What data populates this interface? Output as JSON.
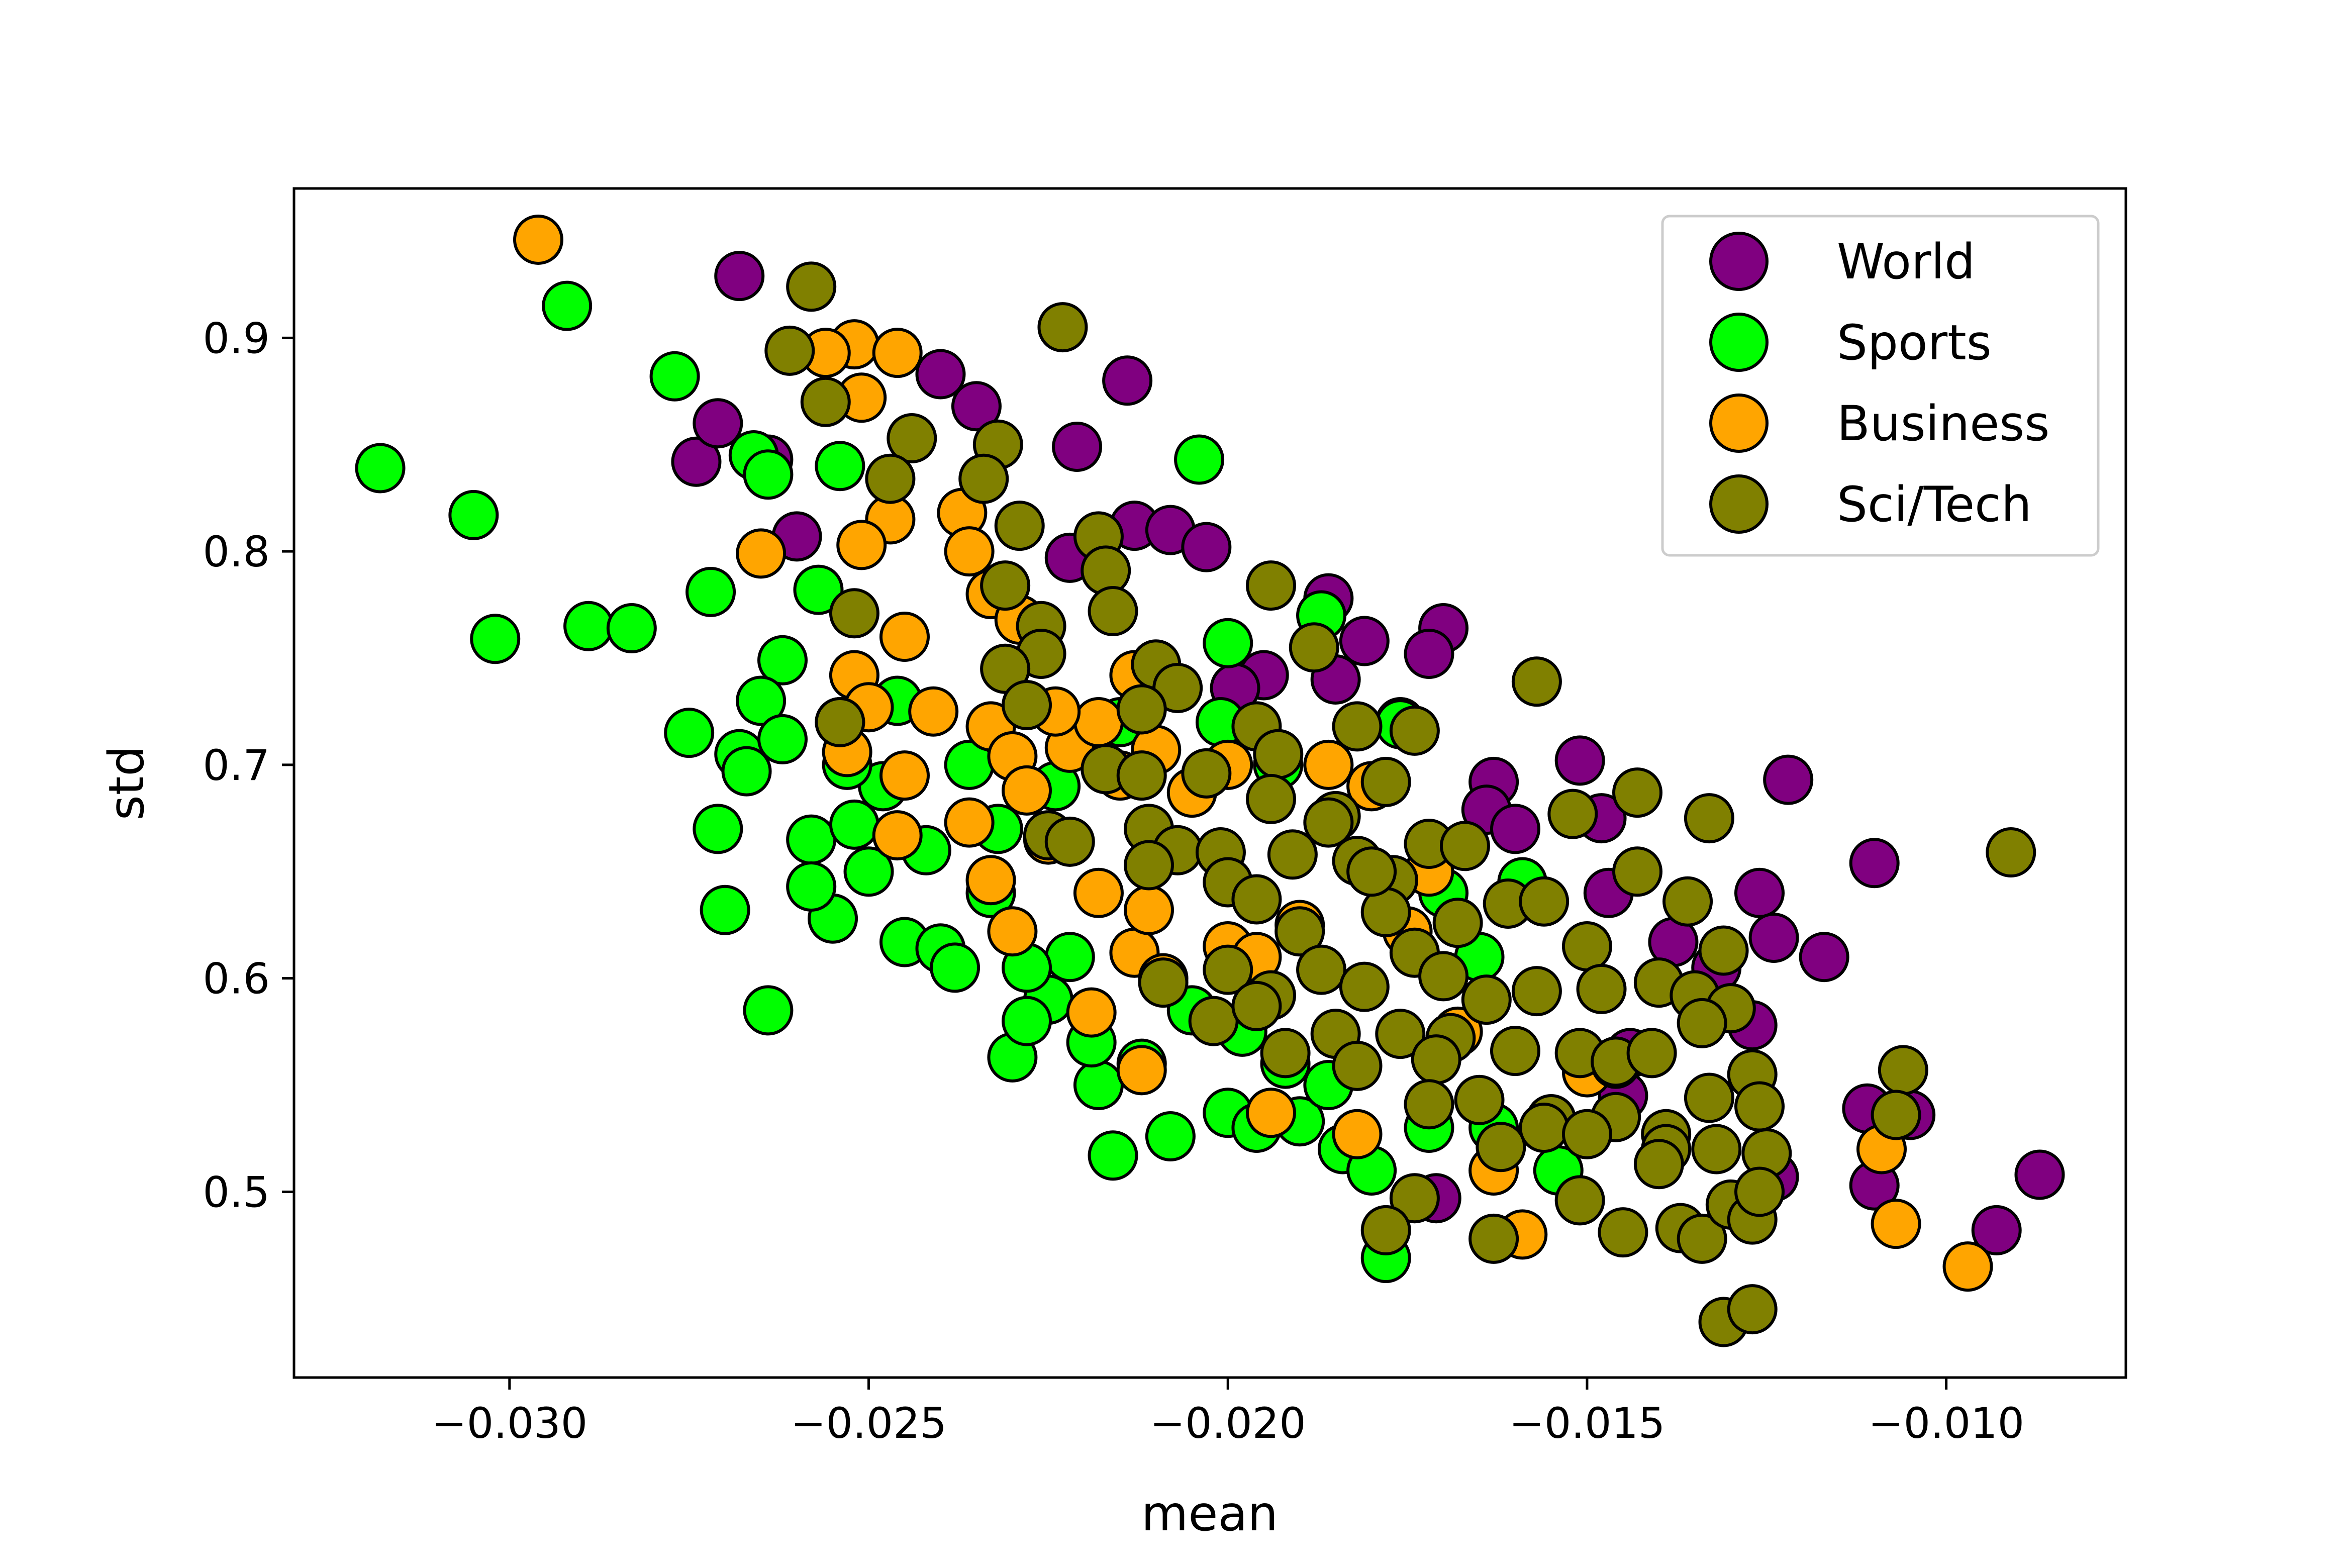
{
  "chart_data": {
    "type": "scatter",
    "title": "",
    "xlabel": "mean",
    "ylabel": "std",
    "xlim": [
      -0.033,
      -0.0075
    ],
    "ylim": [
      0.413,
      0.97
    ],
    "xticks": [
      -0.03,
      -0.025,
      -0.02,
      -0.015,
      -0.01
    ],
    "xtick_labels": [
      "−0.030",
      "−0.025",
      "−0.020",
      "−0.015",
      "−0.010"
    ],
    "yticks": [
      0.5,
      0.6,
      0.7,
      0.8,
      0.9
    ],
    "ytick_labels": [
      "0.5",
      "0.6",
      "0.7",
      "0.8",
      "0.9"
    ],
    "grid": false,
    "legend_position": "top-right",
    "series": [
      {
        "name": "World",
        "color": "#800080",
        "points": [
          [
            -0.0268,
            0.929
          ],
          [
            -0.0274,
            0.842
          ],
          [
            -0.0271,
            0.86
          ],
          [
            -0.0264,
            0.843
          ],
          [
            -0.026,
            0.807
          ],
          [
            -0.024,
            0.883
          ],
          [
            -0.0235,
            0.868
          ],
          [
            -0.0221,
            0.849
          ],
          [
            -0.0222,
            0.797
          ],
          [
            -0.0213,
            0.812
          ],
          [
            -0.0214,
            0.88
          ],
          [
            -0.0208,
            0.81
          ],
          [
            -0.0203,
            0.802
          ],
          [
            -0.0186,
            0.778
          ],
          [
            -0.0195,
            0.742
          ],
          [
            -0.0181,
            0.758
          ],
          [
            -0.017,
            0.764
          ],
          [
            -0.0172,
            0.752
          ],
          [
            -0.0163,
            0.692
          ],
          [
            -0.0164,
            0.679
          ],
          [
            -0.0151,
            0.702
          ],
          [
            -0.0148,
            0.675
          ],
          [
            -0.0147,
            0.64
          ],
          [
            -0.0138,
            0.617
          ],
          [
            -0.0132,
            0.605
          ],
          [
            -0.0126,
            0.64
          ],
          [
            -0.0122,
            0.693
          ],
          [
            -0.0124,
            0.619
          ],
          [
            -0.0117,
            0.61
          ],
          [
            -0.011,
            0.654
          ],
          [
            -0.0111,
            0.539
          ],
          [
            -0.0105,
            0.536
          ],
          [
            -0.011,
            0.503
          ],
          [
            -0.0093,
            0.482
          ],
          [
            -0.0087,
            0.508
          ],
          [
            -0.0127,
            0.578
          ],
          [
            -0.0124,
            0.507
          ],
          [
            -0.0144,
            0.565
          ],
          [
            -0.0145,
            0.545
          ],
          [
            -0.0171,
            0.497
          ],
          [
            -0.0185,
            0.74
          ],
          [
            -0.0199,
            0.736
          ],
          [
            -0.0176,
            0.72
          ],
          [
            -0.016,
            0.67
          ]
        ]
      },
      {
        "name": "Sports",
        "color": "#00ff00",
        "points": [
          [
            -0.0292,
            0.915
          ],
          [
            -0.0318,
            0.839
          ],
          [
            -0.0305,
            0.817
          ],
          [
            -0.0302,
            0.759
          ],
          [
            -0.0289,
            0.765
          ],
          [
            -0.0283,
            0.764
          ],
          [
            -0.0277,
            0.882
          ],
          [
            -0.0275,
            0.715
          ],
          [
            -0.0272,
            0.781
          ],
          [
            -0.0266,
            0.845
          ],
          [
            -0.0264,
            0.836
          ],
          [
            -0.0254,
            0.84
          ],
          [
            -0.0257,
            0.782
          ],
          [
            -0.0262,
            0.749
          ],
          [
            -0.0265,
            0.73
          ],
          [
            -0.0268,
            0.705
          ],
          [
            -0.0271,
            0.67
          ],
          [
            -0.027,
            0.632
          ],
          [
            -0.0264,
            0.585
          ],
          [
            -0.0258,
            0.665
          ],
          [
            -0.0255,
            0.628
          ],
          [
            -0.0245,
            0.617
          ],
          [
            -0.024,
            0.614
          ],
          [
            -0.0238,
            0.605
          ],
          [
            -0.0233,
            0.64
          ],
          [
            -0.023,
            0.563
          ],
          [
            -0.0225,
            0.59
          ],
          [
            -0.0222,
            0.61
          ],
          [
            -0.0218,
            0.55
          ],
          [
            -0.0216,
            0.517
          ],
          [
            -0.0208,
            0.526
          ],
          [
            -0.02,
            0.537
          ],
          [
            -0.0196,
            0.53
          ],
          [
            -0.019,
            0.533
          ],
          [
            -0.0184,
            0.52
          ],
          [
            -0.018,
            0.51
          ],
          [
            -0.0178,
            0.469
          ],
          [
            -0.0187,
            0.77
          ],
          [
            -0.0204,
            0.843
          ],
          [
            -0.02,
            0.757
          ],
          [
            -0.0176,
            0.719
          ],
          [
            -0.017,
            0.64
          ],
          [
            -0.0165,
            0.61
          ],
          [
            -0.0159,
            0.645
          ],
          [
            -0.0154,
            0.51
          ],
          [
            -0.0163,
            0.53
          ],
          [
            -0.0248,
            0.69
          ],
          [
            -0.0252,
            0.672
          ],
          [
            -0.0258,
            0.643
          ],
          [
            -0.0262,
            0.712
          ],
          [
            -0.0267,
            0.697
          ],
          [
            -0.025,
            0.65
          ],
          [
            -0.0242,
            0.66
          ],
          [
            -0.0236,
            0.7
          ],
          [
            -0.0228,
            0.605
          ],
          [
            -0.0219,
            0.57
          ],
          [
            -0.0212,
            0.56
          ],
          [
            -0.0205,
            0.585
          ],
          [
            -0.0198,
            0.575
          ],
          [
            -0.0192,
            0.56
          ],
          [
            -0.0186,
            0.55
          ],
          [
            -0.0228,
            0.58
          ],
          [
            -0.0172,
            0.53
          ],
          [
            -0.0246,
            0.73
          ],
          [
            -0.0253,
            0.7
          ],
          [
            -0.0232,
            0.67
          ],
          [
            -0.0224,
            0.69
          ],
          [
            -0.0215,
            0.72
          ],
          [
            -0.0201,
            0.72
          ],
          [
            -0.0193,
            0.7
          ]
        ]
      },
      {
        "name": "Business",
        "color": "#ffa500",
        "points": [
          [
            -0.0296,
            0.946
          ],
          [
            -0.0252,
            0.897
          ],
          [
            -0.0246,
            0.893
          ],
          [
            -0.0256,
            0.893
          ],
          [
            -0.0251,
            0.872
          ],
          [
            -0.0247,
            0.815
          ],
          [
            -0.0237,
            0.818
          ],
          [
            -0.0236,
            0.8
          ],
          [
            -0.0251,
            0.803
          ],
          [
            -0.0265,
            0.799
          ],
          [
            -0.0245,
            0.76
          ],
          [
            -0.0233,
            0.78
          ],
          [
            -0.0229,
            0.768
          ],
          [
            -0.0252,
            0.742
          ],
          [
            -0.025,
            0.727
          ],
          [
            -0.0254,
            0.72
          ],
          [
            -0.0253,
            0.706
          ],
          [
            -0.0245,
            0.695
          ],
          [
            -0.0246,
            0.667
          ],
          [
            -0.0241,
            0.725
          ],
          [
            -0.0233,
            0.718
          ],
          [
            -0.023,
            0.704
          ],
          [
            -0.0228,
            0.688
          ],
          [
            -0.0236,
            0.673
          ],
          [
            -0.0233,
            0.646
          ],
          [
            -0.023,
            0.622
          ],
          [
            -0.0225,
            0.665
          ],
          [
            -0.0222,
            0.708
          ],
          [
            -0.0218,
            0.72
          ],
          [
            -0.0213,
            0.742
          ],
          [
            -0.021,
            0.707
          ],
          [
            -0.0205,
            0.687
          ],
          [
            -0.0218,
            0.64
          ],
          [
            -0.0213,
            0.612
          ],
          [
            -0.0211,
            0.632
          ],
          [
            -0.0209,
            0.6
          ],
          [
            -0.0219,
            0.584
          ],
          [
            -0.0212,
            0.557
          ],
          [
            -0.02,
            0.615
          ],
          [
            -0.0196,
            0.61
          ],
          [
            -0.019,
            0.625
          ],
          [
            -0.0194,
            0.537
          ],
          [
            -0.0182,
            0.527
          ],
          [
            -0.0175,
            0.622
          ],
          [
            -0.0168,
            0.575
          ],
          [
            -0.0163,
            0.51
          ],
          [
            -0.0159,
            0.48
          ],
          [
            -0.015,
            0.556
          ],
          [
            -0.0146,
            0.56
          ],
          [
            -0.0109,
            0.52
          ],
          [
            -0.0107,
            0.485
          ],
          [
            -0.0097,
            0.465
          ],
          [
            -0.0186,
            0.7
          ],
          [
            -0.0172,
            0.65
          ],
          [
            -0.018,
            0.69
          ],
          [
            -0.02,
            0.7
          ],
          [
            -0.0224,
            0.725
          ],
          [
            -0.0215,
            0.695
          ]
        ]
      },
      {
        "name": "Sci/Tech",
        "color": "#808000",
        "points": [
          [
            -0.0258,
            0.924
          ],
          [
            -0.0223,
            0.905
          ],
          [
            -0.0261,
            0.894
          ],
          [
            -0.0256,
            0.87
          ],
          [
            -0.0244,
            0.853
          ],
          [
            -0.0232,
            0.85
          ],
          [
            -0.0247,
            0.834
          ],
          [
            -0.0234,
            0.834
          ],
          [
            -0.0229,
            0.812
          ],
          [
            -0.0218,
            0.807
          ],
          [
            -0.0217,
            0.791
          ],
          [
            -0.0231,
            0.784
          ],
          [
            -0.0216,
            0.772
          ],
          [
            -0.0194,
            0.784
          ],
          [
            -0.0188,
            0.755
          ],
          [
            -0.0252,
            0.771
          ],
          [
            -0.0226,
            0.765
          ],
          [
            -0.0226,
            0.752
          ],
          [
            -0.0231,
            0.745
          ],
          [
            -0.021,
            0.747
          ],
          [
            -0.0207,
            0.736
          ],
          [
            -0.0228,
            0.728
          ],
          [
            -0.0212,
            0.726
          ],
          [
            -0.0196,
            0.718
          ],
          [
            -0.0182,
            0.718
          ],
          [
            -0.0174,
            0.716
          ],
          [
            -0.0157,
            0.739
          ],
          [
            -0.0254,
            0.72
          ],
          [
            -0.0217,
            0.698
          ],
          [
            -0.0212,
            0.695
          ],
          [
            -0.0203,
            0.696
          ],
          [
            -0.0193,
            0.705
          ],
          [
            -0.0178,
            0.692
          ],
          [
            -0.0185,
            0.676
          ],
          [
            -0.0194,
            0.684
          ],
          [
            -0.0143,
            0.687
          ],
          [
            -0.0152,
            0.677
          ],
          [
            -0.0133,
            0.675
          ],
          [
            -0.0225,
            0.667
          ],
          [
            -0.0222,
            0.664
          ],
          [
            -0.0211,
            0.67
          ],
          [
            -0.0207,
            0.66
          ],
          [
            -0.0201,
            0.659
          ],
          [
            -0.0191,
            0.658
          ],
          [
            -0.0182,
            0.655
          ],
          [
            -0.0177,
            0.646
          ],
          [
            -0.0172,
            0.663
          ],
          [
            -0.0167,
            0.662
          ],
          [
            -0.0143,
            0.65
          ],
          [
            -0.0091,
            0.659
          ],
          [
            -0.0211,
            0.653
          ],
          [
            -0.02,
            0.645
          ],
          [
            -0.0196,
            0.637
          ],
          [
            -0.019,
            0.622
          ],
          [
            -0.0178,
            0.631
          ],
          [
            -0.0174,
            0.612
          ],
          [
            -0.0168,
            0.626
          ],
          [
            -0.0161,
            0.635
          ],
          [
            -0.0156,
            0.636
          ],
          [
            -0.015,
            0.615
          ],
          [
            -0.0136,
            0.636
          ],
          [
            -0.0131,
            0.613
          ],
          [
            -0.02,
            0.604
          ],
          [
            -0.0209,
            0.598
          ],
          [
            -0.0194,
            0.592
          ],
          [
            -0.0187,
            0.604
          ],
          [
            -0.0181,
            0.596
          ],
          [
            -0.017,
            0.601
          ],
          [
            -0.0164,
            0.59
          ],
          [
            -0.0157,
            0.594
          ],
          [
            -0.0148,
            0.595
          ],
          [
            -0.014,
            0.598
          ],
          [
            -0.0135,
            0.592
          ],
          [
            -0.013,
            0.586
          ],
          [
            -0.0202,
            0.58
          ],
          [
            -0.0196,
            0.587
          ],
          [
            -0.0185,
            0.574
          ],
          [
            -0.0176,
            0.574
          ],
          [
            -0.0169,
            0.572
          ],
          [
            -0.016,
            0.566
          ],
          [
            -0.0151,
            0.565
          ],
          [
            -0.0146,
            0.561
          ],
          [
            -0.0141,
            0.565
          ],
          [
            -0.0134,
            0.579
          ],
          [
            -0.0127,
            0.555
          ],
          [
            -0.0192,
            0.565
          ],
          [
            -0.0182,
            0.559
          ],
          [
            -0.0171,
            0.562
          ],
          [
            -0.0165,
            0.543
          ],
          [
            -0.0155,
            0.534
          ],
          [
            -0.0146,
            0.535
          ],
          [
            -0.0139,
            0.527
          ],
          [
            -0.0133,
            0.544
          ],
          [
            -0.0126,
            0.54
          ],
          [
            -0.0106,
            0.557
          ],
          [
            -0.0107,
            0.536
          ],
          [
            -0.0172,
            0.541
          ],
          [
            -0.0162,
            0.521
          ],
          [
            -0.0156,
            0.53
          ],
          [
            -0.015,
            0.527
          ],
          [
            -0.0139,
            0.52
          ],
          [
            -0.0132,
            0.52
          ],
          [
            -0.0125,
            0.518
          ],
          [
            -0.014,
            0.513
          ],
          [
            -0.0174,
            0.497
          ],
          [
            -0.0151,
            0.496
          ],
          [
            -0.0145,
            0.481
          ],
          [
            -0.0137,
            0.483
          ],
          [
            -0.0134,
            0.478
          ],
          [
            -0.013,
            0.494
          ],
          [
            -0.0127,
            0.487
          ],
          [
            -0.0126,
            0.5
          ],
          [
            -0.0178,
            0.482
          ],
          [
            -0.0163,
            0.478
          ],
          [
            -0.0131,
            0.439
          ],
          [
            -0.0127,
            0.445
          ],
          [
            -0.0186,
            0.673
          ],
          [
            -0.018,
            0.65
          ]
        ]
      }
    ]
  }
}
